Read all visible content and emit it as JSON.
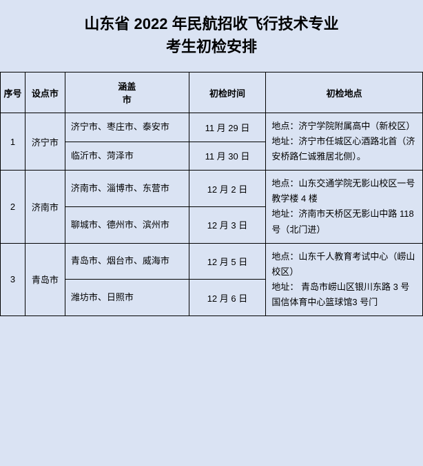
{
  "title_line1": "山东省 2022 年民航招收飞行技术专业",
  "title_line2": "考生初检安排",
  "headers": {
    "seq": "序号",
    "city": "设点市",
    "cover_line1": "涵盖",
    "cover_line2": "市",
    "date": "初检时间",
    "loc": "初检地点"
  },
  "rows": [
    {
      "seq": "1",
      "city": "济宁市",
      "subrows": [
        {
          "cover": "济宁市、枣庄市、泰安市",
          "date": "11 月 29 日"
        },
        {
          "cover": "临沂市、菏泽市",
          "date": "11 月 30 日"
        }
      ],
      "loc": "地点：济宁学院附属高中（新校区）\n地址：济宁市任城区心酒路北首（济安桥路仁诚雅居北侧）。"
    },
    {
      "seq": "2",
      "city": "济南市",
      "subrows": [
        {
          "cover": "济南市、淄博市、东营市",
          "date": "12 月 2 日"
        },
        {
          "cover": "聊城市、德州市、滨州市",
          "date": "12 月 3 日"
        }
      ],
      "loc": "地点：山东交通学院无影山校区一号教学楼 4 楼\n地址：济南市天桥区无影山中路 118 号（北门进）"
    },
    {
      "seq": "3",
      "city": "青岛市",
      "subrows": [
        {
          "cover": "青岛市、烟台市、威海市",
          "date": "12 月 5 日"
        },
        {
          "cover": "潍坊市、日照市",
          "date": "12 月 6 日"
        }
      ],
      "loc": "地点：山东千人教育考试中心（崂山校区）\n地址： 青岛市崂山区银川东路 3 号国信体育中心篮球馆3 号门"
    }
  ]
}
